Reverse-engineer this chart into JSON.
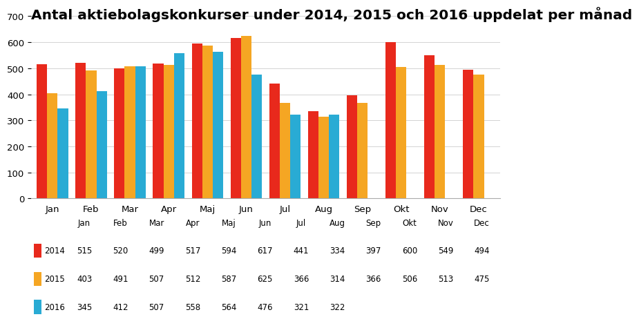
{
  "title": "Antal aktiebolagskonkurser under 2014, 2015 och 2016 uppdelat per månad",
  "months": [
    "Jan",
    "Feb",
    "Mar",
    "Apr",
    "Maj",
    "Jun",
    "Jul",
    "Aug",
    "Sep",
    "Okt",
    "Nov",
    "Dec"
  ],
  "series": {
    "2014": [
      515,
      520,
      499,
      517,
      594,
      617,
      441,
      334,
      397,
      600,
      549,
      494
    ],
    "2015": [
      403,
      491,
      507,
      512,
      587,
      625,
      366,
      314,
      366,
      506,
      513,
      475
    ],
    "2016": [
      345,
      412,
      507,
      558,
      564,
      476,
      321,
      322,
      null,
      null,
      null,
      null
    ]
  },
  "colors": {
    "2014": "#E8291C",
    "2015": "#F5A623",
    "2016": "#29ABD4"
  },
  "ylim": [
    0,
    700
  ],
  "yticks": [
    0,
    100,
    200,
    300,
    400,
    500,
    600,
    700
  ],
  "title_fontsize": 14.5,
  "background_color": "#FFFFFF"
}
